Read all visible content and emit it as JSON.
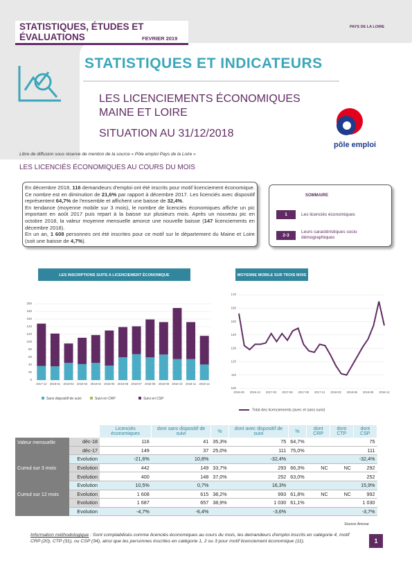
{
  "header": {
    "series_title": "STATISTIQUES, ÉTUDES ET ÉVALUATIONS",
    "date": "FEVRIER 2019",
    "region": "PAYS DE LA LOIRE",
    "main_title": "STATISTIQUES ET INDICATEURS",
    "subtitle_1": "LES LICENCIEMENTS ÉCONOMIQUES",
    "subtitle_2": "MAINE ET LOIRE",
    "subtitle_3": "SITUATION AU 31/12/2018",
    "logo": "pôle emploi"
  },
  "notice": "Libre de diffusion sous réserve de mention de la source « Pôle emploi Pays de la Loire »",
  "section_title": "LES LICENCIÉS ÉCONOMIQUES AU COURS DU MOIS",
  "summary_text": {
    "paragraphs": [
      [
        {
          "text": "En décembre 2018, "
        },
        {
          "text": "116",
          "bold": true
        },
        {
          "text": " demandeurs d'emploi ont été inscrits pour motif licenciement économique. Ce nombre est en diminution de "
        },
        {
          "text": "21,6%",
          "bold": true
        },
        {
          "text": " par rapport à décembre 2017. Les licenciés avec dispositif représentent "
        },
        {
          "text": "64,7%",
          "bold": true
        },
        {
          "text": " de l'ensemble et affichent une baisse de "
        },
        {
          "text": "32,4%",
          "bold": true
        },
        {
          "text": "."
        }
      ],
      [
        {
          "text": "En tendance (moyenne mobile sur 3 mois), le nombre de licenciés économiques affiche un pic important en août 2017 puis repart à la baisse sur plusieurs mois. Après un nouveau pic en octobre 2018, la valeur moyenne mensuelle amorce une nouvelle baisse ("
        },
        {
          "text": "147",
          "bold": true
        },
        {
          "text": " licenciements en décembre 2018)."
        }
      ],
      [
        {
          "text": "En un an, "
        },
        {
          "text": "1 608",
          "bold": true
        },
        {
          "text": " personnes ont été inscrites pour ce motif sur le département du Maine et Loire (soit une baisse de "
        },
        {
          "text": "4,7%",
          "bold": true
        },
        {
          "text": ")."
        }
      ]
    ]
  },
  "contents": {
    "title": "SOMMAIRE",
    "items": [
      {
        "num": "1",
        "label": "Les licenciés économiques"
      },
      {
        "num": "2-3",
        "label": "Leurs caractéristiques socio démographiques"
      }
    ]
  },
  "chart_data": [
    {
      "type": "bar",
      "stacked": true,
      "title": "LES INSCRIPTIONS SUITE A LICENCIEMENT ÉCONOMIQUE",
      "categories": [
        "2017-12",
        "2018-01",
        "2018-02",
        "2018-03",
        "2018-04",
        "2018-05",
        "2018-06",
        "2018-07",
        "2018-08",
        "2018-09",
        "2018-10",
        "2018-11",
        "2018-12"
      ],
      "series": [
        {
          "name": "Sans dispositif de suivi",
          "color": "#4bacc6",
          "values": [
            37,
            36,
            45,
            42,
            45,
            38,
            60,
            68,
            60,
            67,
            55,
            55,
            41
          ]
        },
        {
          "name": "Suivi en CRP",
          "color": "#9bbb59",
          "values": [
            0,
            0,
            0,
            0,
            0,
            0,
            0,
            0,
            0,
            0,
            0,
            0,
            0
          ]
        },
        {
          "name": "Suivi en CSP",
          "color": "#5f2b62",
          "values": [
            111,
            86,
            51,
            69,
            73,
            92,
            79,
            73,
            99,
            85,
            134,
            97,
            75
          ]
        }
      ],
      "ylim": [
        0,
        200
      ],
      "yticks": [
        0,
        20,
        40,
        60,
        80,
        100,
        120,
        140,
        160,
        180,
        200
      ],
      "grid": true,
      "legend": "bottom"
    },
    {
      "type": "line",
      "title": "MOYENNE MOBILE SUR TROIS MOIS",
      "categories": [
        "2016-09",
        null,
        null,
        "2016-12",
        null,
        null,
        "2017-03",
        null,
        null,
        "2017-06",
        null,
        null,
        "2017-09",
        null,
        null,
        "2017-12",
        null,
        null,
        "2018-03",
        null,
        null,
        "2018-06",
        null,
        null,
        "2018-09",
        null,
        null,
        "2018-12"
      ],
      "series": [
        {
          "name": "Total des licenciements (avec et sans suivi)",
          "color": "#5f2b62",
          "values": [
            156,
            132,
            129,
            133,
            133,
            134,
            141,
            135,
            141,
            136,
            143,
            145,
            133,
            128,
            127,
            133,
            132,
            125,
            117,
            111,
            110,
            117,
            124,
            131,
            137,
            147,
            165,
            147
          ]
        }
      ],
      "ylim": [
        100,
        170
      ],
      "yticks": [
        100,
        110,
        120,
        130,
        140,
        150,
        160,
        170
      ],
      "grid": true,
      "legend": "bottom"
    }
  ],
  "table": {
    "header": [
      "Licenciés économiques",
      "dont sans dispositif de suivi",
      "%",
      "dont avec dispositif de suivi",
      "%",
      "dont CRP",
      "dont CTP",
      "dont CSP"
    ],
    "rows": [
      {
        "group": "Valeur mensuelle",
        "label": "déc-18",
        "cells": [
          "116",
          "41",
          "35,3%",
          "75",
          "64,7%",
          null,
          null,
          "75"
        ]
      },
      {
        "label": "déc-17",
        "cells": [
          "149",
          "37",
          "25,0%",
          "111",
          "75,0%",
          null,
          null,
          "111"
        ]
      },
      {
        "label": "Evolution",
        "cells": [
          "-21,6%",
          "10,8%",
          null,
          "-32,4%",
          null,
          null,
          null,
          "-32,4%"
        ]
      },
      {
        "group": "Cumul sur 3 mois",
        "label": "Evolution",
        "cells": [
          "442",
          "149",
          "33,7%",
          "293",
          "66,3%",
          "NC",
          "NC",
          "292"
        ]
      },
      {
        "label": "Evolution",
        "cells": [
          "400",
          "148",
          "37,0%",
          "252",
          "63,0%",
          null,
          null,
          "252"
        ]
      },
      {
        "label": "Evolution",
        "cells": [
          "10,5%",
          "0,7%",
          null,
          "16,3%",
          null,
          null,
          null,
          "15,9%"
        ]
      },
      {
        "group": "Cumul sur 12 mois",
        "label": "Evolution",
        "cells": [
          "1 608",
          "615",
          "38,2%",
          "993",
          "61,8%",
          "NC",
          "NC",
          "992"
        ]
      },
      {
        "label": "Evolution",
        "cells": [
          "1 687",
          "657",
          "38,9%",
          "1 030",
          "61,1%",
          null,
          null,
          "1 030"
        ]
      },
      {
        "label": "Evolution",
        "cells": [
          "-4,7%",
          "-6,4%",
          null,
          "-3,6%",
          null,
          null,
          null,
          "-3,7%"
        ]
      }
    ]
  },
  "source": "Source Aresse",
  "footnote": {
    "lead": "Information méthodologique",
    "text": " : Sont comptabilisés comme licenciés économiques au cours du mois, les demandeurs d'emploi inscrits en catégorie 4, motif CRP (20), CTP (31), ou CSP (34), ainsi que les personnes inscrites en catégorie 1, 2 ou 3 pour motif licenciement économique (11)."
  },
  "page_number": "1"
}
